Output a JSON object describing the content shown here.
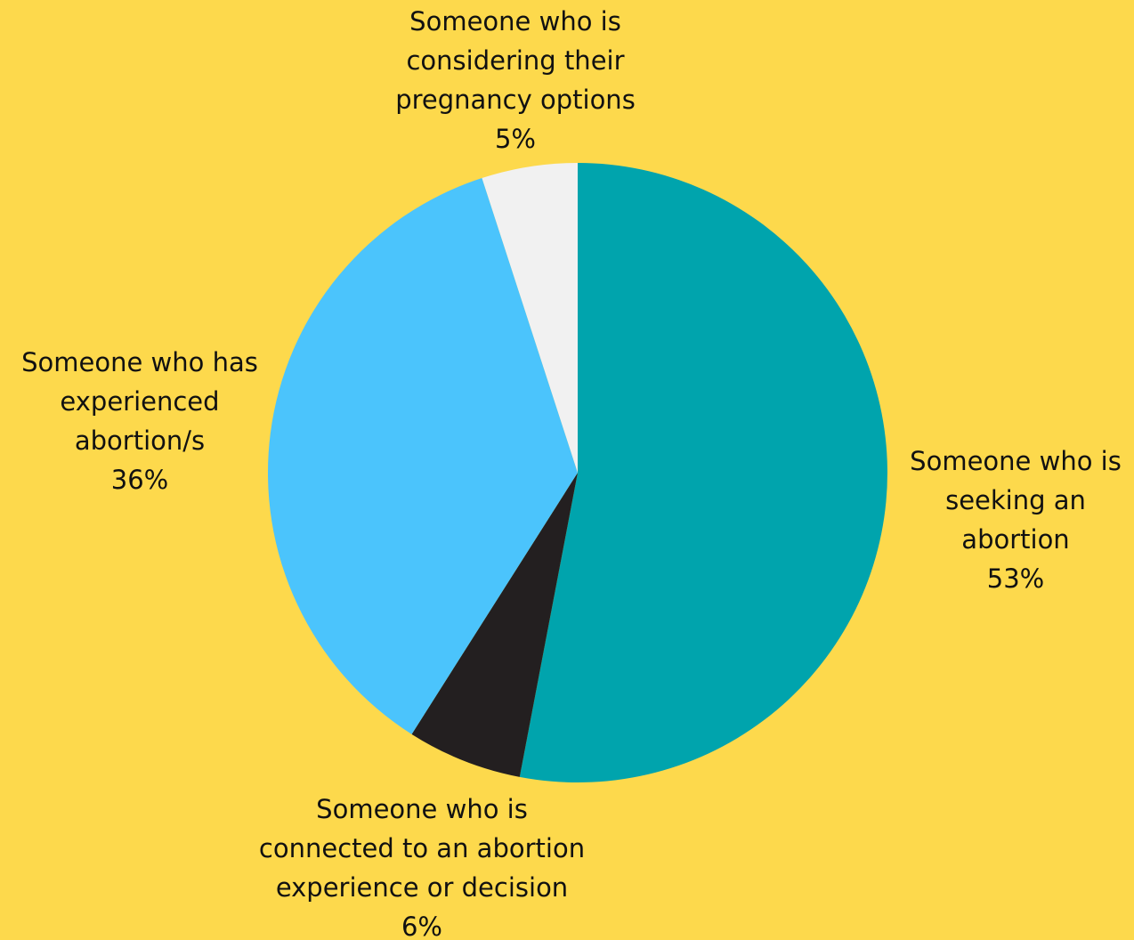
{
  "background_color": "#FDD94C",
  "chart_data": {
    "type": "pie",
    "start_angle_deg": 0,
    "direction": "clockwise",
    "legend": "none",
    "slices": [
      {
        "label_lines": [
          "Someone who is",
          "seeking an",
          "abortion"
        ],
        "value": 53,
        "value_label": "53%",
        "color": "#00A4AD"
      },
      {
        "label_lines": [
          "Someone who is",
          "connected to an abortion",
          "experience or decision"
        ],
        "value": 6,
        "value_label": "6%",
        "color": "#231F20"
      },
      {
        "label_lines": [
          "Someone who has",
          "experienced",
          "abortion/s"
        ],
        "value": 36,
        "value_label": "36%",
        "color": "#4BC4FC"
      },
      {
        "label_lines": [
          "Someone who is",
          "considering their",
          "pregnancy options"
        ],
        "value": 5,
        "value_label": "5%",
        "color": "#F1F1F1"
      }
    ]
  }
}
